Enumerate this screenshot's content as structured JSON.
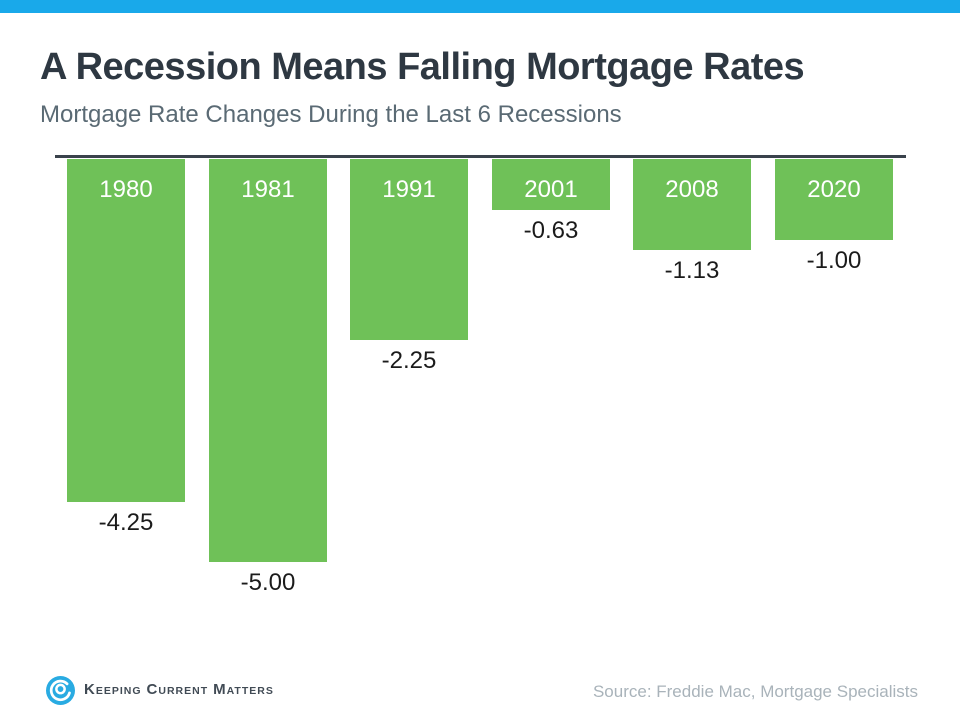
{
  "accent": {
    "top_strip_color": "#19a9ea"
  },
  "header": {
    "title": "A Recession Means Falling Mortgage Rates",
    "subtitle": "Mortgage Rate Changes During the Last 6 Recessions"
  },
  "chart_data": {
    "type": "bar",
    "title": "Mortgage Rate Changes During the Last 6 Recessions",
    "categories": [
      "1980",
      "1981",
      "1991",
      "2001",
      "2008",
      "2020"
    ],
    "values": [
      -4.25,
      -5.0,
      -2.25,
      -0.63,
      -1.13,
      -1.0
    ],
    "value_labels": [
      "-4.25",
      "-5.00",
      "-2.25",
      "-0.63",
      "-1.13",
      "-1.00"
    ],
    "xlabel": "",
    "ylabel": "",
    "ylim": [
      -5.5,
      0
    ],
    "orientation": "vertical-down-from-zero-baseline",
    "grid": false,
    "legend": "none",
    "bar_color": "#6fc158",
    "axis_line_color": "#3a424c",
    "category_label_position": "inside-top-white",
    "value_label_position": "below-bar-black"
  },
  "footer": {
    "logo_words": [
      "Keeping",
      "Current",
      "Matters"
    ],
    "logo_color": "#29abe2",
    "source": "Source: Freddie Mac, Mortgage Specialists"
  }
}
